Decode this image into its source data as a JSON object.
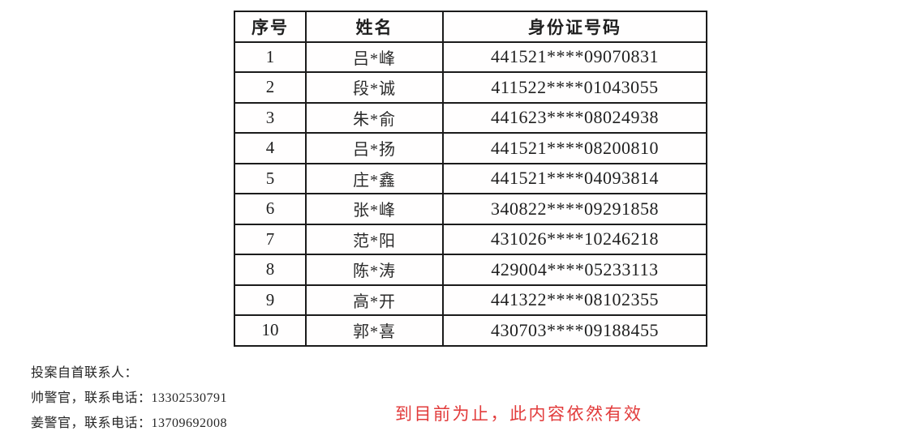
{
  "table": {
    "headers": [
      "序号",
      "姓名",
      "身份证号码"
    ],
    "rows": [
      {
        "no": "1",
        "name": "吕*峰",
        "id": "441521****09070831"
      },
      {
        "no": "2",
        "name": "段*诚",
        "id": "411522****01043055"
      },
      {
        "no": "3",
        "name": "朱*俞",
        "id": "441623****08024938"
      },
      {
        "no": "4",
        "name": "吕*扬",
        "id": "441521****08200810"
      },
      {
        "no": "5",
        "name": "庄*鑫",
        "id": "441521****04093814"
      },
      {
        "no": "6",
        "name": "张*峰",
        "id": "340822****09291858"
      },
      {
        "no": "7",
        "name": "范*阳",
        "id": "431026****10246218"
      },
      {
        "no": "8",
        "name": "陈*涛",
        "id": "429004****05233113"
      },
      {
        "no": "9",
        "name": "高*开",
        "id": "441322****08102355"
      },
      {
        "no": "10",
        "name": "郭*喜",
        "id": "430703****09188455"
      }
    ]
  },
  "footer": {
    "contact_title": "投案自首联系人：",
    "contacts": [
      "帅警官，联系电话：13302530791",
      "姜警官，联系电话：13709692008"
    ],
    "validity_note": "到目前为止，此内容依然有效"
  },
  "colors": {
    "note_red": "#e23b3b",
    "text": "#1f1f1f",
    "border": "#1b1b1b"
  }
}
